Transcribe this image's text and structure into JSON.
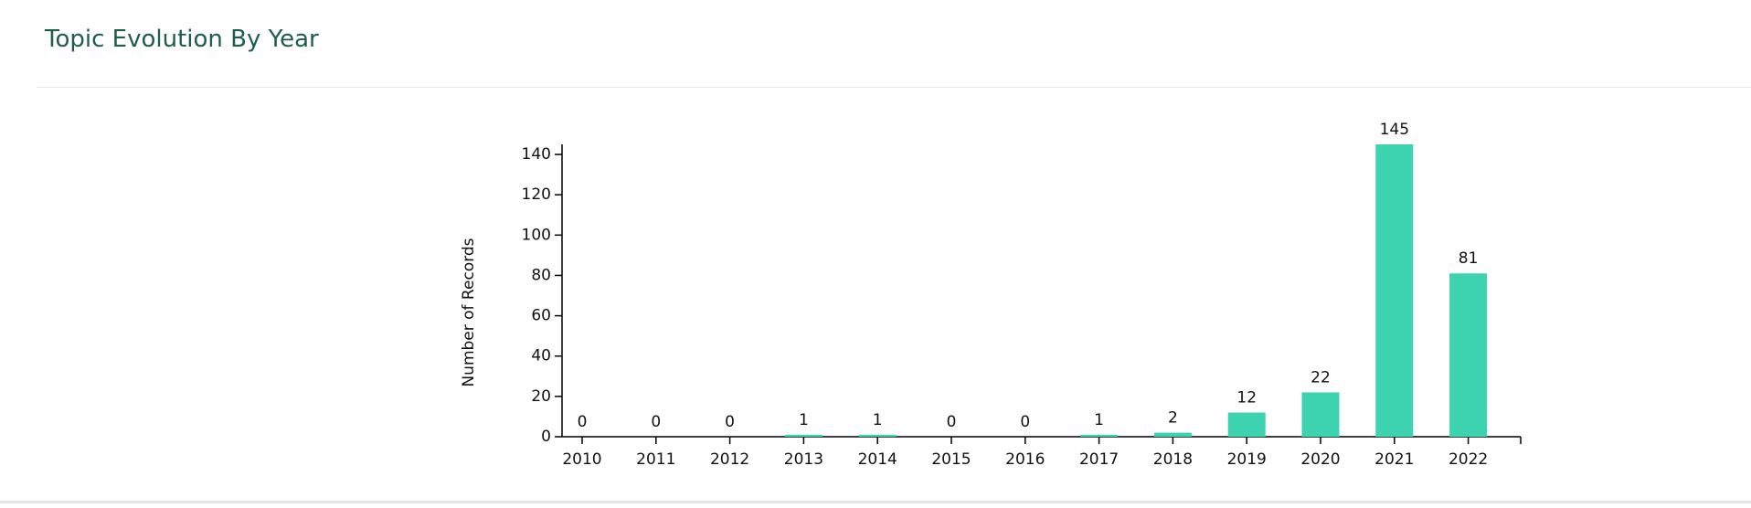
{
  "header": {
    "title": "Topic Evolution By Year"
  },
  "chart_data": {
    "type": "bar",
    "y_label": "Number of Records",
    "categories": [
      "2010",
      "2011",
      "2012",
      "2013",
      "2014",
      "2015",
      "2016",
      "2017",
      "2018",
      "2019",
      "2020",
      "2021",
      "2022"
    ],
    "values": [
      0,
      0,
      0,
      1,
      1,
      0,
      0,
      1,
      2,
      12,
      22,
      145,
      81
    ],
    "color": "#3dd3b0",
    "ylim": [
      0,
      145
    ],
    "yticks": [
      0,
      20,
      40,
      60,
      80,
      100,
      120,
      140
    ]
  }
}
